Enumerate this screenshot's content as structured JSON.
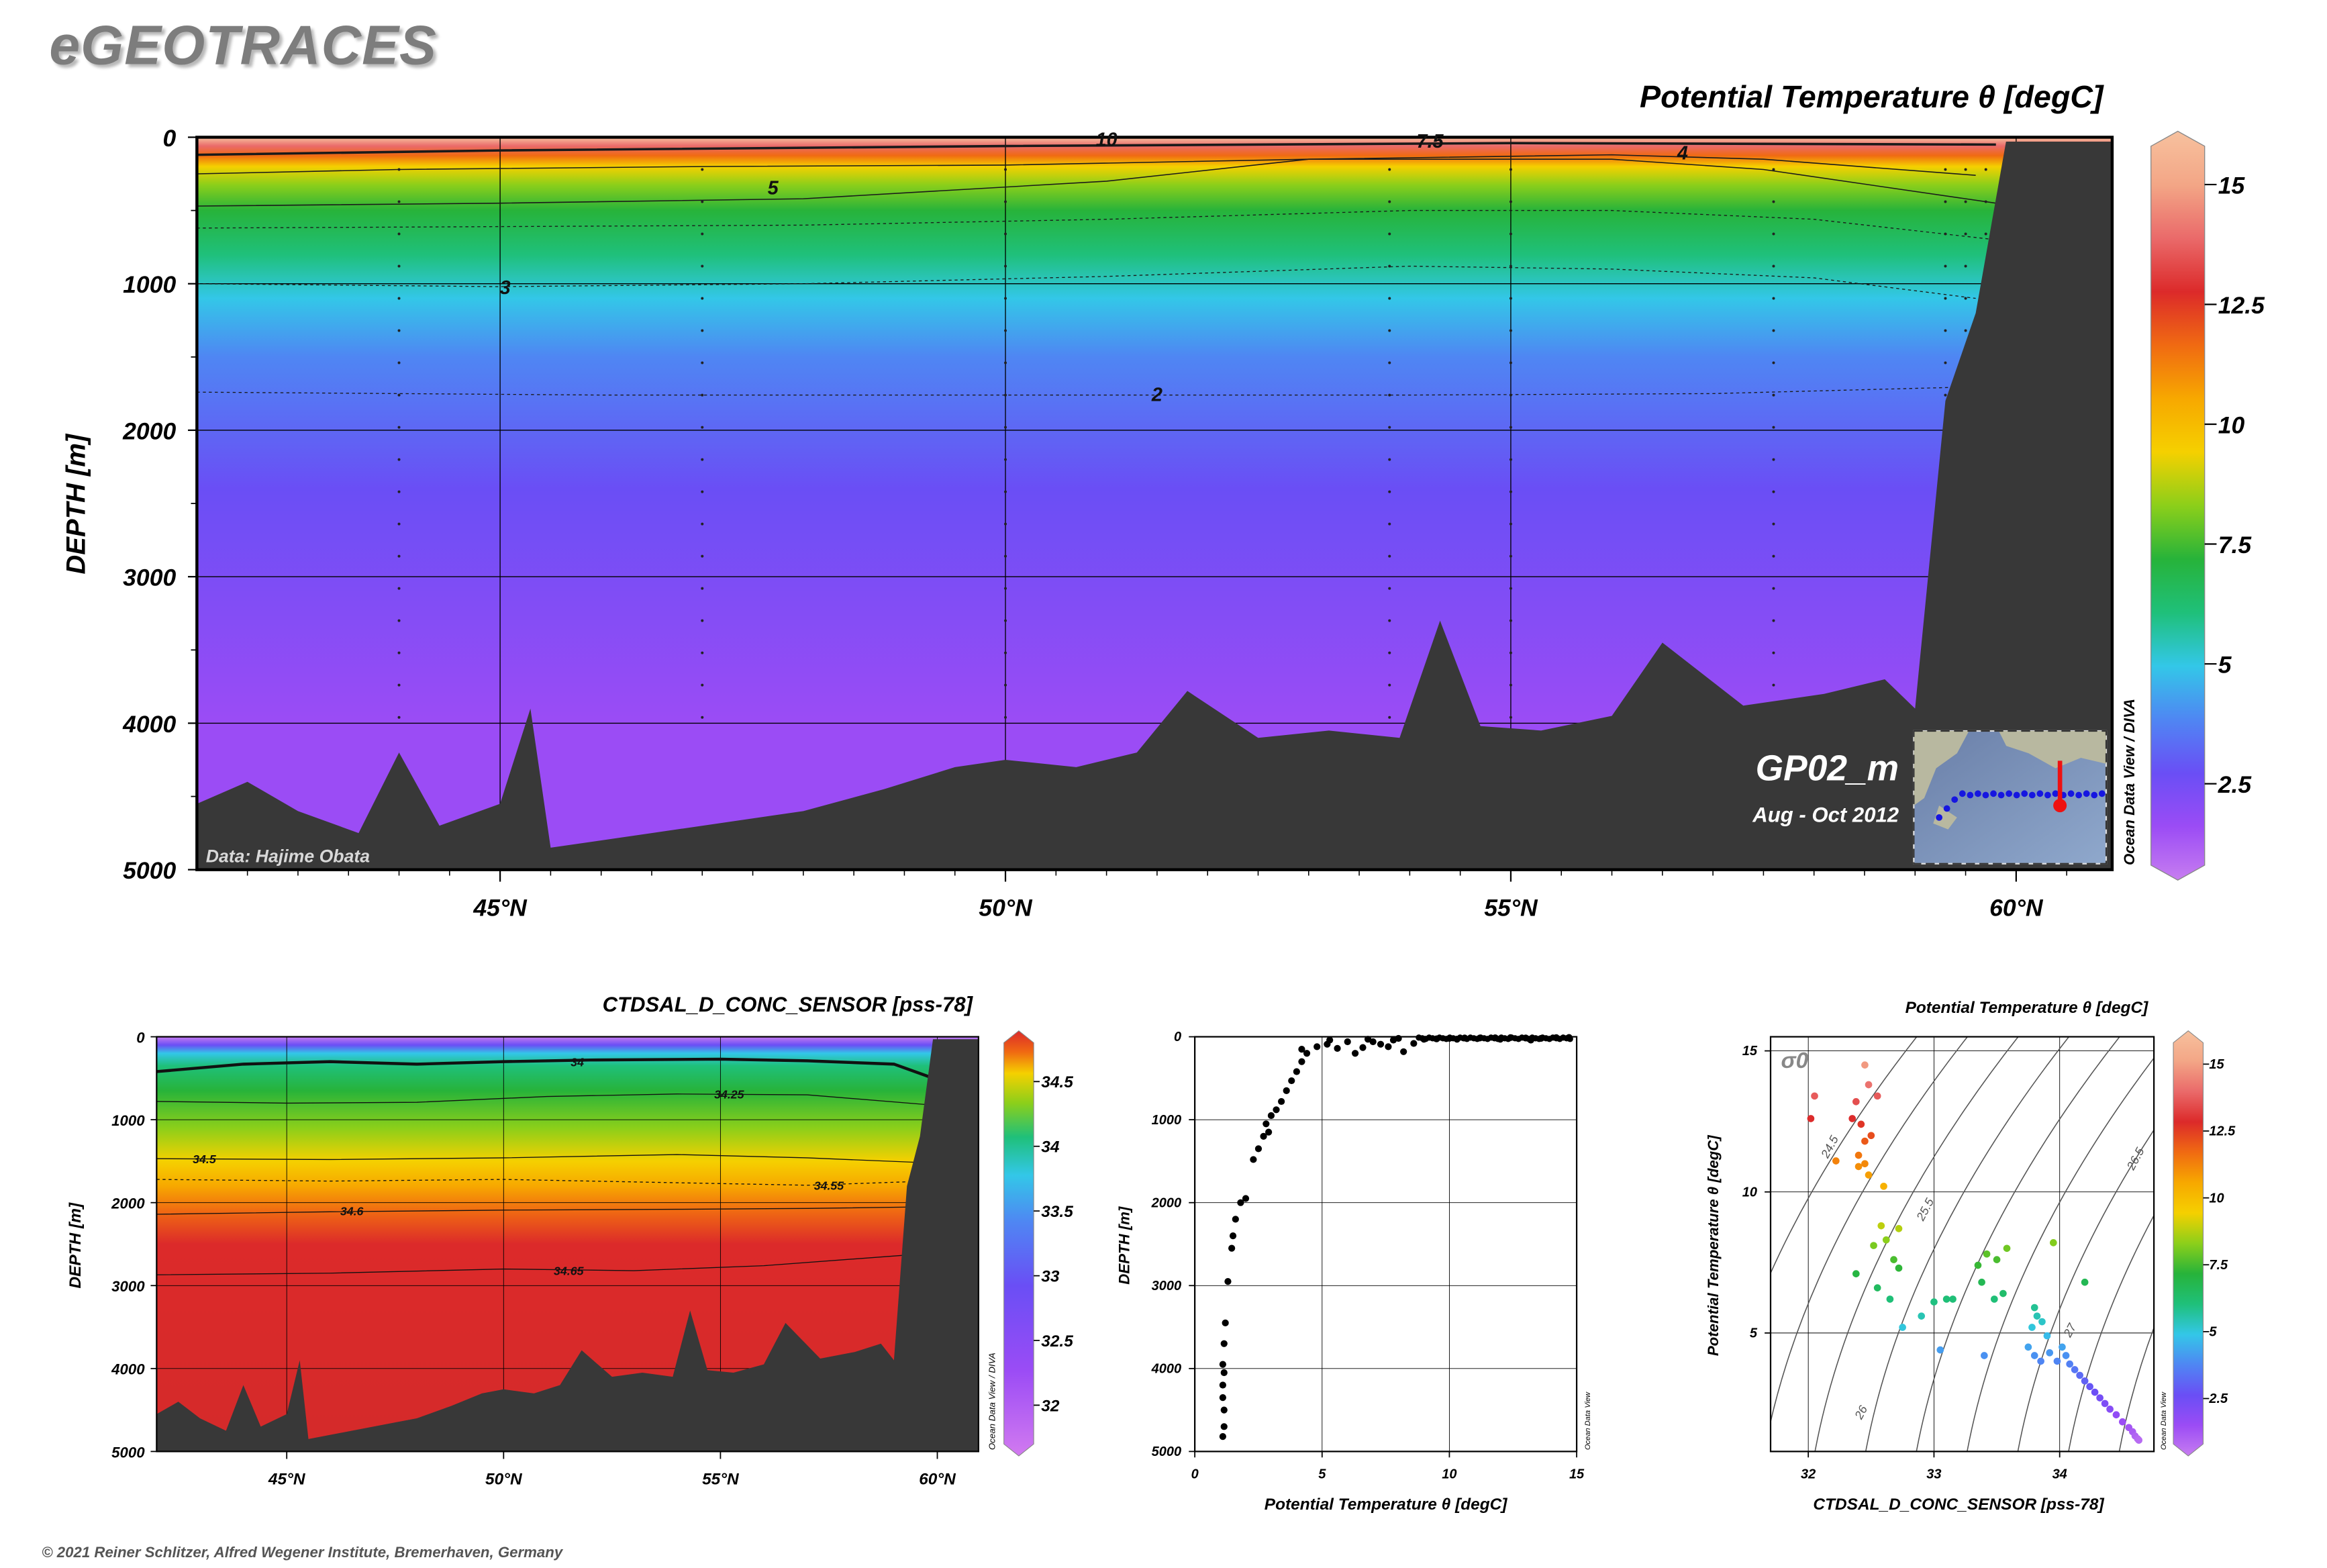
{
  "brand": "eGEOTRACES",
  "copyright": "© 2021 Reiner Schlitzer, Alfred Wegener Institute, Bremerhaven, Germany",
  "colors": {
    "land": "#383838",
    "rainbow": [
      "#c77df0",
      "#9b4cf5",
      "#6a4ef5",
      "#4f86f3",
      "#33c7e8",
      "#1fc07a",
      "#27b33a",
      "#8ccf1a",
      "#f5d000",
      "#f7a800",
      "#f06a12",
      "#dc2a2a",
      "#ea6a6a",
      "#f3a686",
      "#f7c19e"
    ]
  },
  "main_section": {
    "title": "Potential Temperature θ [degC]",
    "ylabel": "DEPTH [m]",
    "credit": "Data: Hajime Obata",
    "section_name": "GP02_m",
    "date_range": "Aug - Oct 2012",
    "odv_label": "Ocean Data View / DIVA",
    "contour_labels": [
      "10",
      "7.5",
      "5",
      "4",
      "3",
      "2"
    ]
  },
  "salinity_section": {
    "title": "CTDSAL_D_CONC_SENSOR [pss-78]",
    "ylabel": "DEPTH [m]",
    "odv_label": "Ocean Data View / DIVA",
    "contour_labels": [
      "34",
      "34.25",
      "34.5",
      "34.55",
      "34.6",
      "34.65"
    ]
  },
  "profile_plot": {
    "odv_label": "Ocean Data View"
  },
  "ts_plot": {
    "sigma_label": "σ0",
    "odv_label": "Ocean Data View",
    "isopycnal_labels": [
      "24.5",
      "25.5",
      "26",
      "26.5",
      "27",
      "27.5"
    ]
  },
  "chart_data": [
    {
      "type": "heatmap",
      "title": "Potential Temperature θ [degC]",
      "xlabel": "",
      "ylabel": "DEPTH [m]",
      "x_ticks": [
        "45°N",
        "50°N",
        "55°N",
        "60°N"
      ],
      "y_ticks": [
        0,
        1000,
        2000,
        3000,
        4000,
        5000
      ],
      "xlim": [
        42.0,
        60.95
      ],
      "ylim": [
        5000,
        0
      ],
      "colorbar": {
        "ticks": [
          "15",
          "12.5",
          "10",
          "7.5",
          "5",
          "2.5"
        ],
        "range": [
          0.8,
          15.8
        ]
      },
      "contours": [
        {
          "level": "10",
          "lat": 51.0,
          "depth": 20
        },
        {
          "level": "7.5",
          "lat": 54.2,
          "depth": 30
        },
        {
          "level": "5",
          "lat": 47.7,
          "depth": 350
        },
        {
          "level": "4",
          "lat": 56.7,
          "depth": 110
        },
        {
          "level": "3",
          "lat": 45.05,
          "depth": 1030
        },
        {
          "level": "2",
          "lat": 51.5,
          "depth": 1760
        }
      ],
      "bottom_depth": [
        [
          42.0,
          4550
        ],
        [
          42.5,
          4400
        ],
        [
          43.0,
          4600
        ],
        [
          43.6,
          4750
        ],
        [
          44.0,
          4200
        ],
        [
          44.4,
          4700
        ],
        [
          45.0,
          4550
        ],
        [
          45.3,
          3900
        ],
        [
          45.5,
          4850
        ],
        [
          46.5,
          4750
        ],
        [
          47.5,
          4650
        ],
        [
          48.0,
          4600
        ],
        [
          48.8,
          4450
        ],
        [
          49.5,
          4300
        ],
        [
          50.0,
          4250
        ],
        [
          50.7,
          4300
        ],
        [
          51.3,
          4200
        ],
        [
          51.8,
          3780
        ],
        [
          52.5,
          4100
        ],
        [
          53.2,
          4050
        ],
        [
          53.9,
          4100
        ],
        [
          54.3,
          3300
        ],
        [
          54.7,
          4020
        ],
        [
          55.3,
          4050
        ],
        [
          56.0,
          3950
        ],
        [
          56.5,
          3450
        ],
        [
          57.3,
          3880
        ],
        [
          58.1,
          3800
        ],
        [
          58.7,
          3700
        ],
        [
          59.0,
          3900
        ],
        [
          59.3,
          1800
        ],
        [
          59.6,
          1200
        ],
        [
          59.9,
          30
        ],
        [
          60.95,
          30
        ]
      ]
    },
    {
      "type": "heatmap",
      "title": "CTDSAL_D_CONC_SENSOR [pss-78]",
      "xlabel": "",
      "ylabel": "DEPTH [m]",
      "x_ticks": [
        "45°N",
        "50°N",
        "55°N",
        "60°N"
      ],
      "y_ticks": [
        0,
        1000,
        2000,
        3000,
        4000,
        5000
      ],
      "xlim": [
        42.0,
        60.95
      ],
      "ylim": [
        5000,
        0
      ],
      "colorbar": {
        "ticks": [
          "34.5",
          "34",
          "33.5",
          "33",
          "32.5",
          "32"
        ],
        "range": [
          31.7,
          34.8
        ]
      },
      "contours": [
        {
          "level": "34",
          "lat": 51.7,
          "depth": 300
        },
        {
          "level": "34.25",
          "lat": 55.2,
          "depth": 690
        },
        {
          "level": "34.5",
          "lat": 43.1,
          "depth": 1470
        },
        {
          "level": "34.55",
          "lat": 57.5,
          "depth": 1790
        },
        {
          "level": "34.6",
          "lat": 46.5,
          "depth": 2100
        },
        {
          "level": "34.65",
          "lat": 51.5,
          "depth": 2820
        }
      ]
    },
    {
      "type": "scatter",
      "title": "",
      "xlabel": "Potential Temperature θ [degC]",
      "ylabel": "DEPTH [m]",
      "x_ticks": [
        "0",
        "5",
        "10",
        "15"
      ],
      "y_ticks": [
        "0",
        "1000",
        "2000",
        "3000",
        "4000",
        "5000"
      ],
      "xlim": [
        0,
        15
      ],
      "ylim": [
        5000,
        0
      ],
      "points": [
        [
          1.1,
          4820
        ],
        [
          1.15,
          4700
        ],
        [
          1.15,
          4500
        ],
        [
          1.1,
          4350
        ],
        [
          1.1,
          4200
        ],
        [
          1.15,
          4050
        ],
        [
          1.1,
          3950
        ],
        [
          1.15,
          3700
        ],
        [
          1.2,
          3450
        ],
        [
          1.3,
          2950
        ],
        [
          1.45,
          2550
        ],
        [
          1.5,
          2400
        ],
        [
          1.6,
          2200
        ],
        [
          1.8,
          2000
        ],
        [
          2.0,
          1950
        ],
        [
          2.3,
          1480
        ],
        [
          2.5,
          1350
        ],
        [
          2.7,
          1200
        ],
        [
          2.8,
          1050
        ],
        [
          3.0,
          950
        ],
        [
          2.9,
          1150
        ],
        [
          3.2,
          880
        ],
        [
          3.4,
          780
        ],
        [
          3.6,
          650
        ],
        [
          3.8,
          530
        ],
        [
          4.0,
          420
        ],
        [
          4.2,
          300
        ],
        [
          4.4,
          200
        ],
        [
          4.8,
          120
        ],
        [
          4.2,
          150
        ],
        [
          5.2,
          90
        ],
        [
          5.6,
          140
        ],
        [
          6.0,
          60
        ],
        [
          6.3,
          200
        ],
        [
          6.6,
          130
        ],
        [
          7.0,
          60
        ],
        [
          7.3,
          90
        ],
        [
          7.8,
          40
        ],
        [
          8.2,
          180
        ],
        [
          8.6,
          80
        ],
        [
          9.0,
          30
        ],
        [
          9.5,
          25
        ],
        [
          10.0,
          20
        ],
        [
          10.6,
          15
        ],
        [
          11.2,
          15
        ],
        [
          11.8,
          12
        ],
        [
          12.4,
          10
        ],
        [
          13.0,
          15
        ],
        [
          13.6,
          20
        ],
        [
          14.2,
          10
        ],
        [
          14.7,
          8
        ],
        [
          5.3,
          40
        ],
        [
          6.8,
          30
        ],
        [
          7.6,
          120
        ],
        [
          8.0,
          20
        ],
        [
          10.3,
          30
        ],
        [
          12.0,
          30
        ],
        [
          13.2,
          40
        ]
      ]
    },
    {
      "type": "scatter",
      "title": "Potential Temperature θ [degC]",
      "xlabel": "CTDSAL_D_CONC_SENSOR [pss-78]",
      "ylabel": "Potential Temperature θ [degC]",
      "x_ticks": [
        "32",
        "33",
        "34"
      ],
      "y_ticks": [
        "5",
        "10",
        "15"
      ],
      "xlim": [
        31.7,
        34.75
      ],
      "ylim": [
        0.8,
        15.5
      ],
      "colorbar": {
        "ticks": [
          "15",
          "12.5",
          "10",
          "7.5",
          "5",
          "2.5"
        ],
        "range": [
          0.8,
          15.8
        ]
      },
      "points": [
        [
          32.05,
          13.4
        ],
        [
          32.02,
          12.6
        ],
        [
          32.22,
          11.1
        ],
        [
          32.45,
          14.5
        ],
        [
          32.48,
          13.8
        ],
        [
          32.55,
          13.4
        ],
        [
          32.42,
          12.4
        ],
        [
          32.5,
          12.0
        ],
        [
          32.38,
          13.2
        ],
        [
          32.35,
          12.6
        ],
        [
          32.45,
          11.8
        ],
        [
          32.4,
          11.3
        ],
        [
          32.45,
          11.0
        ],
        [
          32.48,
          10.6
        ],
        [
          32.4,
          10.9
        ],
        [
          32.6,
          10.2
        ],
        [
          32.58,
          8.8
        ],
        [
          32.62,
          8.3
        ],
        [
          32.72,
          8.7
        ],
        [
          32.52,
          8.1
        ],
        [
          32.68,
          7.6
        ],
        [
          32.38,
          7.1
        ],
        [
          32.55,
          6.6
        ],
        [
          32.72,
          7.3
        ],
        [
          32.65,
          6.2
        ],
        [
          32.75,
          5.2
        ],
        [
          32.9,
          5.6
        ],
        [
          33.0,
          6.1
        ],
        [
          33.1,
          6.2
        ],
        [
          33.15,
          6.2
        ],
        [
          33.35,
          7.4
        ],
        [
          33.42,
          7.8
        ],
        [
          33.5,
          7.6
        ],
        [
          33.58,
          8.0
        ],
        [
          33.38,
          6.8
        ],
        [
          33.48,
          6.2
        ],
        [
          33.55,
          6.4
        ],
        [
          33.95,
          8.2
        ],
        [
          33.05,
          4.4
        ],
        [
          33.4,
          4.2
        ],
        [
          33.8,
          5.9
        ],
        [
          33.82,
          5.6
        ],
        [
          33.86,
          5.4
        ],
        [
          33.78,
          5.2
        ],
        [
          33.9,
          4.9
        ],
        [
          33.75,
          4.5
        ],
        [
          33.8,
          4.2
        ],
        [
          33.85,
          4.0
        ],
        [
          33.92,
          4.3
        ],
        [
          33.98,
          4.0
        ],
        [
          34.02,
          4.5
        ],
        [
          34.05,
          4.2
        ],
        [
          34.08,
          3.9
        ],
        [
          34.12,
          3.7
        ],
        [
          34.16,
          3.5
        ],
        [
          34.2,
          3.3
        ],
        [
          34.24,
          3.1
        ],
        [
          34.28,
          2.9
        ],
        [
          34.32,
          2.7
        ],
        [
          34.36,
          2.5
        ],
        [
          34.4,
          2.3
        ],
        [
          34.45,
          2.1
        ],
        [
          34.5,
          1.85
        ],
        [
          34.55,
          1.65
        ],
        [
          34.58,
          1.5
        ],
        [
          34.6,
          1.35
        ],
        [
          34.62,
          1.25
        ],
        [
          34.63,
          1.2
        ],
        [
          34.2,
          6.8
        ]
      ]
    }
  ]
}
